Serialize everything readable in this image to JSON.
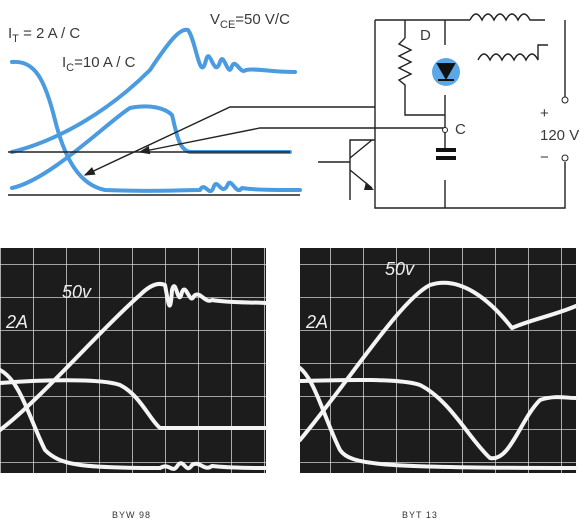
{
  "waveforms": {
    "labels": [
      {
        "main": "I",
        "sub": "T",
        "rest": " = 2 A / C"
      },
      {
        "main": "I",
        "sub": "C",
        "rest": "=10 A / C"
      },
      {
        "main": "V",
        "sub": "CE",
        "rest": "=50 V/C"
      }
    ]
  },
  "circuit": {
    "diode_label": "D",
    "capacitor_label": "C",
    "plus": "+",
    "voltage": "120 V",
    "minus": "−"
  },
  "scopes": [
    {
      "voltage_label": "50v",
      "current_label": "2A",
      "caption": "BYW 98"
    },
    {
      "voltage_label": "50v",
      "current_label": "2A",
      "caption": "BYT 13"
    }
  ]
}
